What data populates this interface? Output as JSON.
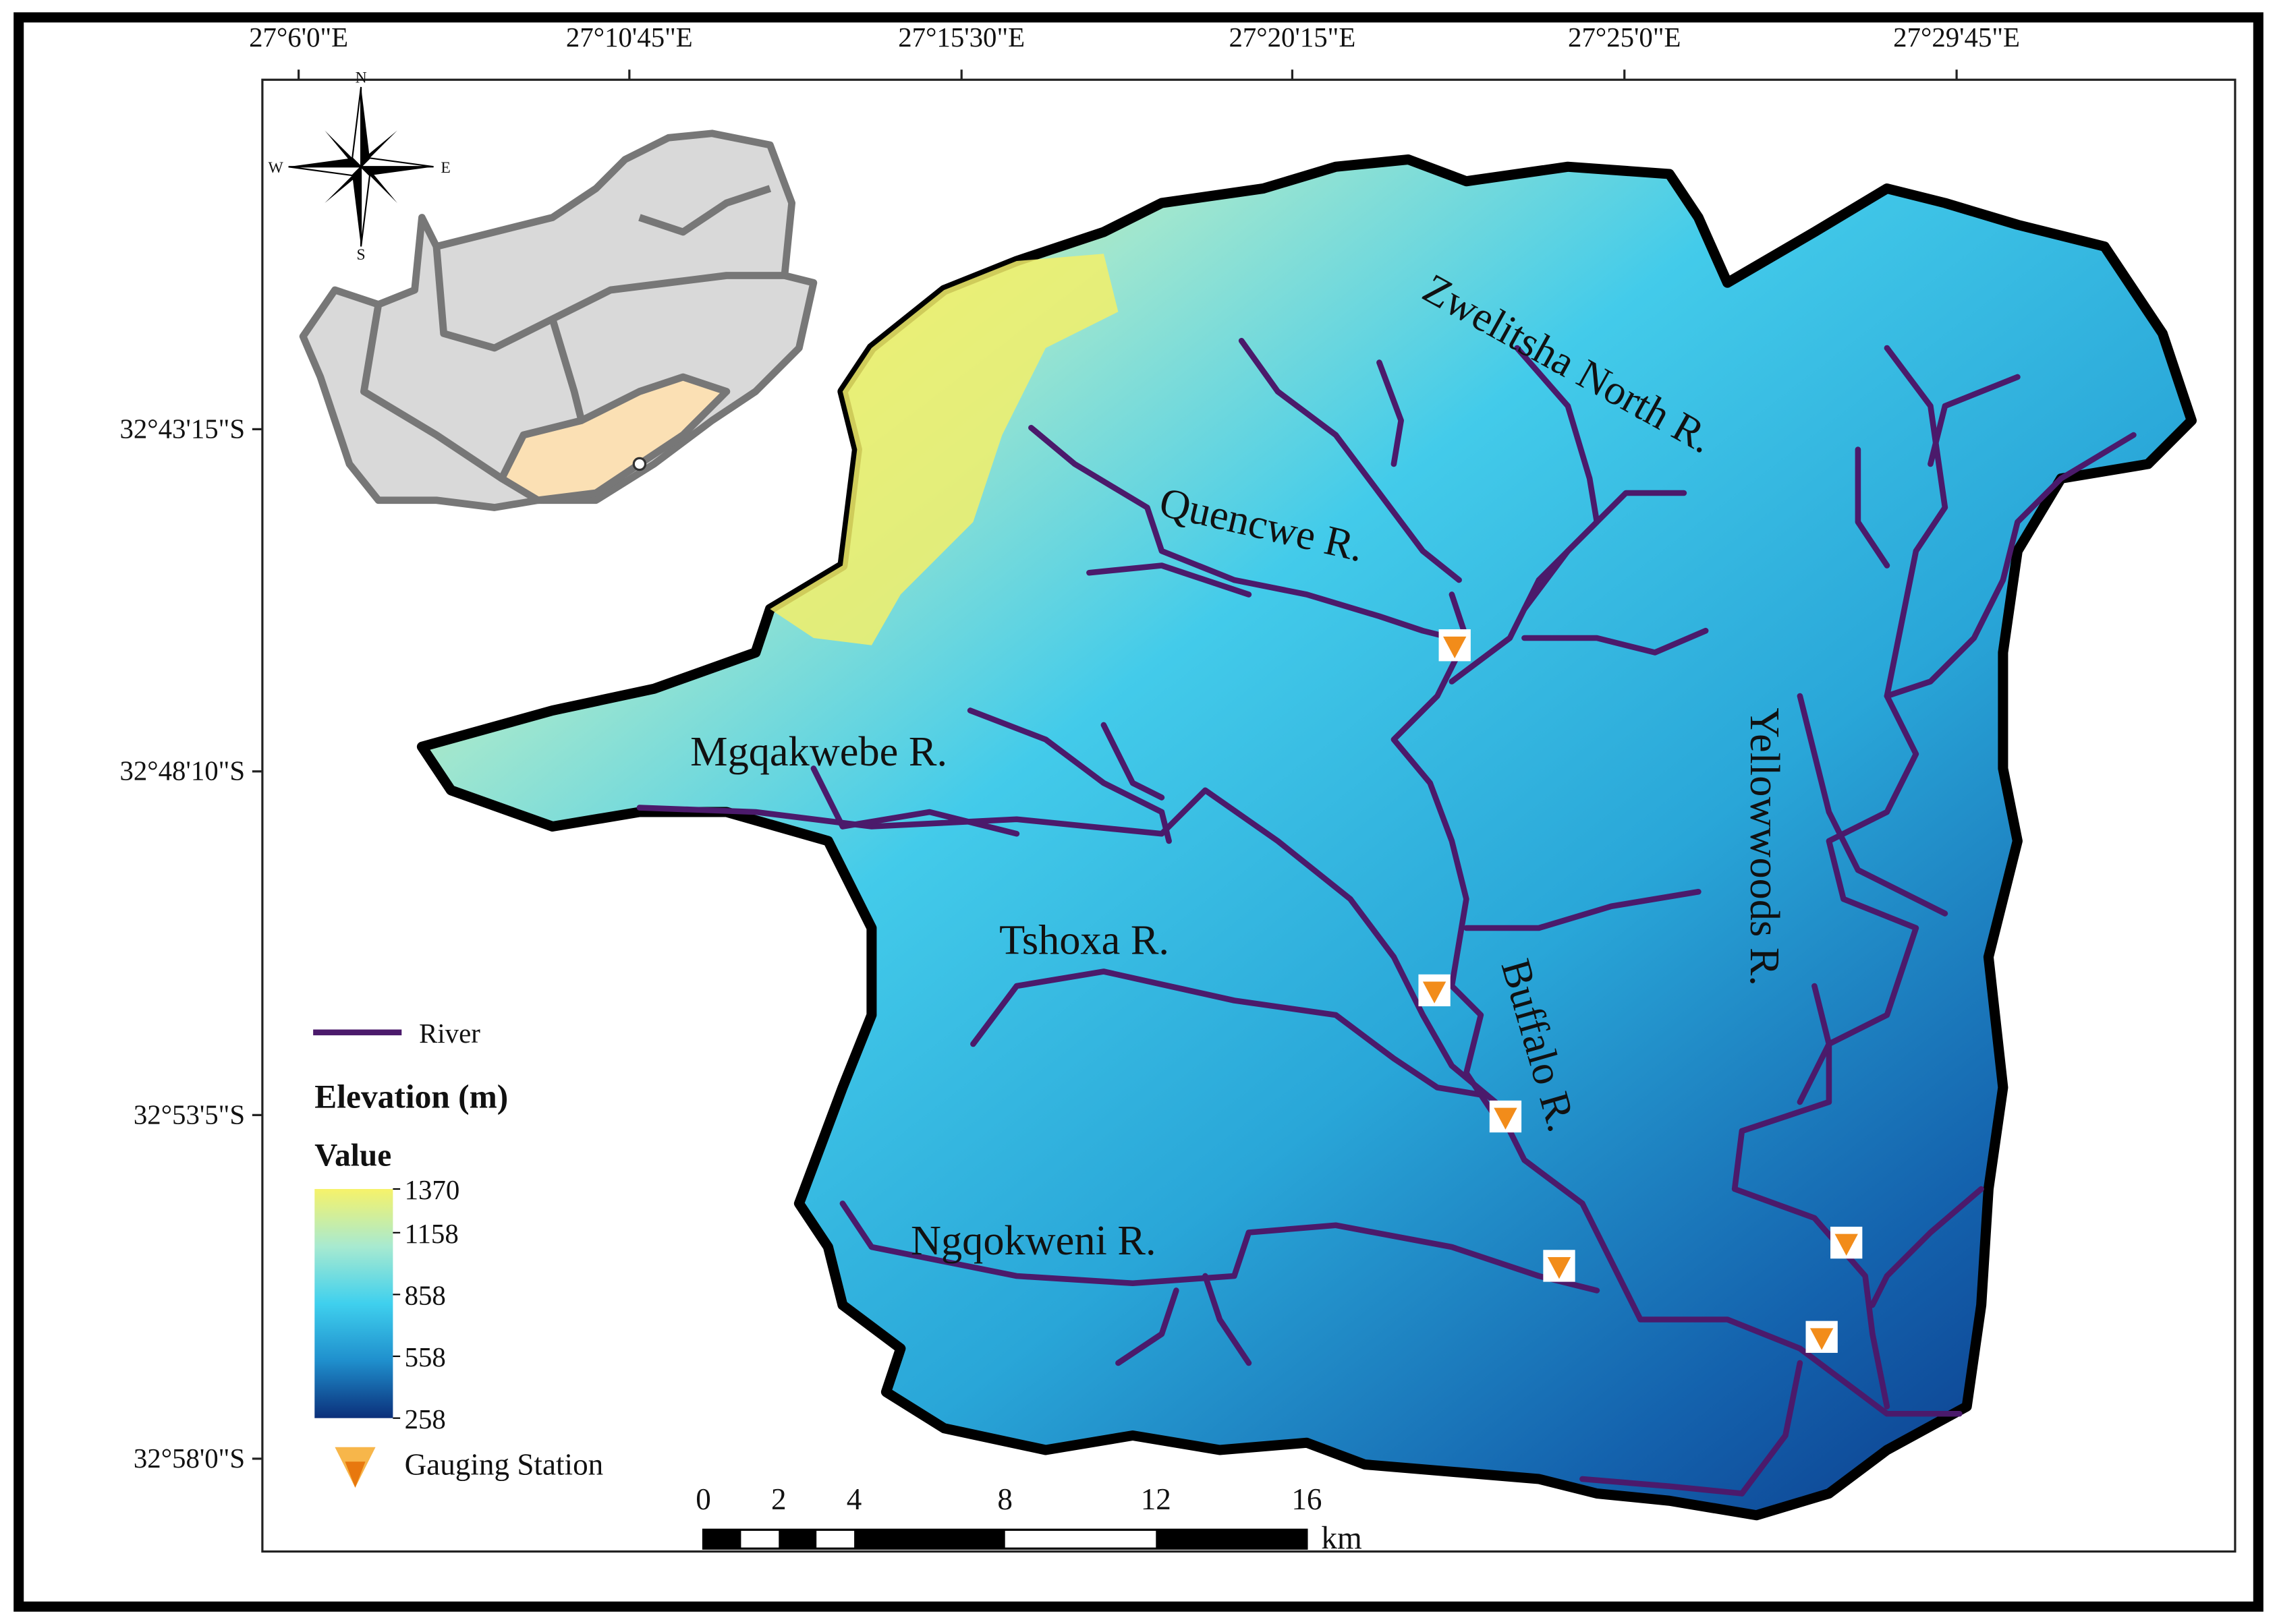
{
  "map": {
    "longitude_labels": [
      "27°6'0\"E",
      "27°10'45\"E",
      "27°15'30\"E",
      "27°20'15\"E",
      "27°25'0\"E",
      "27°29'45\"E"
    ],
    "latitude_labels": [
      "32°43'15\"S",
      "32°48'10\"S",
      "32°53'5\"S",
      "32°58'0\"S"
    ],
    "river_labels": [
      "Zwelitsha North R.",
      "Quencwe R.",
      "Mgqakwebe R.",
      "Tshoxa R.",
      "Buffalo R.",
      "Yellowwoods R.",
      "Ngqokweni R."
    ],
    "compass": {
      "north": "N",
      "south": "S",
      "east": "E",
      "west": "W"
    },
    "legend": {
      "river": "River",
      "title": "Elevation (m)",
      "subtitle": "Value",
      "values": [
        1370,
        1158,
        858,
        558,
        258
      ],
      "gauging_station": "Gauging Station"
    },
    "scale_bar": {
      "ticks": [
        0,
        2,
        4,
        8,
        12,
        16
      ],
      "unit": "km"
    }
  }
}
